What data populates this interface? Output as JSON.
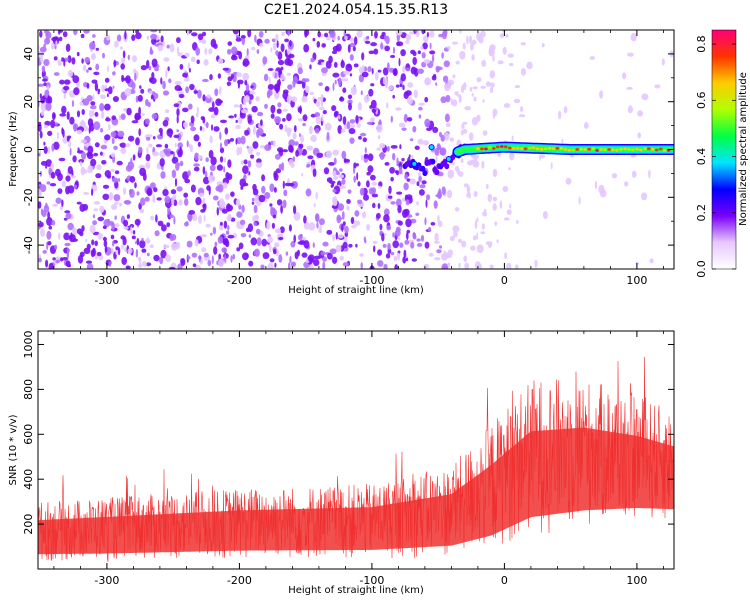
{
  "title": "C2E1.2024.054.15.35.R13",
  "chart_data": [
    {
      "type": "heatmap",
      "xlabel": "Height of straight line (km)",
      "ylabel": "Frequency (Hz)",
      "xlim": [
        -352,
        128
      ],
      "ylim": [
        -50,
        50
      ],
      "xticks": [
        -300,
        -200,
        -100,
        0,
        100
      ],
      "xtick_labels": [
        "-300",
        "-200",
        "-100",
        "0",
        "100"
      ],
      "yticks": [
        -40,
        -20,
        0,
        20,
        40
      ],
      "ytick_labels": [
        "-40",
        "-20",
        "0",
        "20",
        "40"
      ],
      "colorbar": {
        "label": "Normalized spectral amplitude",
        "range": [
          0,
          0.85
        ],
        "ticks": [
          0.0,
          0.2,
          0.4,
          0.6,
          0.8
        ],
        "tick_labels": [
          "0.0",
          "0.2",
          "0.4",
          "0.6",
          "0.8"
        ],
        "colors": [
          "#ffffff",
          "#e8c8ff",
          "#7a00ff",
          "#0000ff",
          "#00e5ff",
          "#00ff44",
          "#b0ff00",
          "#ffcc00",
          "#ff3300",
          "#ff0077"
        ]
      },
      "signal_trace": [
        {
          "x": -75,
          "y": -5
        },
        {
          "x": -70,
          "y": -6
        },
        {
          "x": -65,
          "y": -7
        },
        {
          "x": -60,
          "y": -8
        },
        {
          "x": -55,
          "y": -6
        },
        {
          "x": -50,
          "y": -8
        },
        {
          "x": -45,
          "y": -6
        },
        {
          "x": -40,
          "y": -3
        },
        {
          "x": -35,
          "y": -1
        },
        {
          "x": -30,
          "y": 0
        },
        {
          "x": 0,
          "y": 1
        },
        {
          "x": 50,
          "y": 0
        },
        {
          "x": 100,
          "y": 0
        },
        {
          "x": 128,
          "y": 0
        }
      ],
      "noise_edge_km": -50
    },
    {
      "type": "line",
      "xlabel": "Height of straight line (km)",
      "ylabel": "SNR (10 * v/v)",
      "xlim": [
        -352,
        128
      ],
      "ylim": [
        0,
        1060
      ],
      "xticks": [
        -300,
        -200,
        -100,
        0,
        100
      ],
      "xtick_labels": [
        "-300",
        "-200",
        "-100",
        "0",
        "100"
      ],
      "yticks": [
        200,
        400,
        600,
        800,
        1000
      ],
      "ytick_labels": [
        "200",
        "400",
        "600",
        "800",
        "1000"
      ],
      "series_color": "#f03030",
      "envelope": [
        {
          "x": -352,
          "low": 30,
          "mean": 150,
          "high": 300
        },
        {
          "x": -300,
          "low": 30,
          "mean": 160,
          "high": 320
        },
        {
          "x": -200,
          "low": 40,
          "mean": 180,
          "high": 360
        },
        {
          "x": -100,
          "low": 40,
          "mean": 190,
          "high": 380
        },
        {
          "x": -40,
          "low": 50,
          "mean": 230,
          "high": 460
        },
        {
          "x": -10,
          "low": 80,
          "mean": 310,
          "high": 650
        },
        {
          "x": 20,
          "low": 150,
          "mean": 420,
          "high": 850
        },
        {
          "x": 60,
          "low": 180,
          "mean": 450,
          "high": 850
        },
        {
          "x": 100,
          "low": 200,
          "mean": 440,
          "high": 780
        },
        {
          "x": 128,
          "low": 200,
          "mean": 420,
          "high": 700
        }
      ]
    }
  ]
}
